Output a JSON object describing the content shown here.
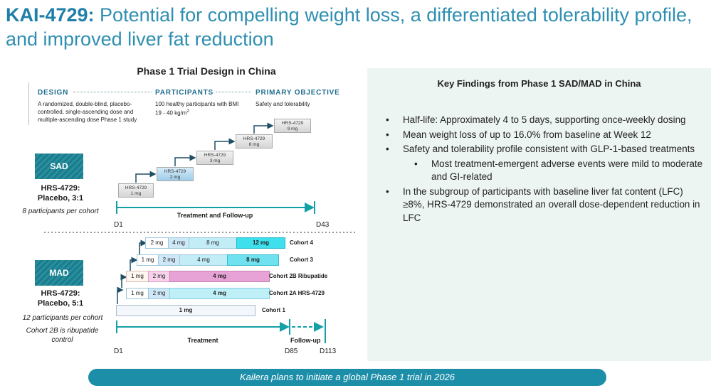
{
  "header": {
    "title_bold": "KAI-4729:",
    "title_rest": " Potential for compelling weight loss, a differentiated tolerability profile, and improved liver fat reduction"
  },
  "trial_design": {
    "title": "Phase 1 Trial Design in China",
    "columns": [
      {
        "heading": "DESIGN",
        "text": "A randomized, double-blind, placebo-controlled, single-ascending dose and multiple-ascending dose Phase 1 study"
      },
      {
        "heading": "PARTICIPANTS",
        "text_main": "100 healthy participants with BMI 19 - 40 kg/m",
        "text_sup": "2"
      },
      {
        "heading": "PRIMARY OBJECTIVE",
        "text": "Safety and tolerability"
      }
    ],
    "sad": {
      "badge": "SAD",
      "drug": "HRS-4729:",
      "ratio": "Placebo, 3:1",
      "note": "8 participants per cohort",
      "steps": [
        {
          "drug": "HRS-4729",
          "dose": "1 mg"
        },
        {
          "drug": "HRS-4729",
          "dose": "2 mg"
        },
        {
          "drug": "HRS-4729",
          "dose": "3 mg"
        },
        {
          "drug": "HRS-4729",
          "dose": "6 mg"
        },
        {
          "drug": "HRS-4729",
          "dose": "9 mg"
        }
      ],
      "timeline_label": "Treatment and Follow-up",
      "day_start": "D1",
      "day_end": "D43"
    },
    "mad": {
      "badge": "MAD",
      "drug": "HRS-4729:",
      "ratio": "Placebo, 5:1",
      "note1": "12 participants per cohort",
      "note2": "Cohort 2B is ribupatide control",
      "cohorts": [
        {
          "label": "Cohort 4",
          "segments": [
            "2 mg",
            "4 mg",
            "8 mg",
            "12 mg"
          ]
        },
        {
          "label": "Cohort 3",
          "segments": [
            "1 mg",
            "2 mg",
            "4 mg",
            "8 mg"
          ]
        },
        {
          "label": "Cohort 2B Ribupatide",
          "segments": [
            "1 mg",
            "2 mg",
            "4 mg"
          ]
        },
        {
          "label": "Cohort 2A HRS-4729",
          "segments": [
            "1 mg",
            "2 mg",
            "4 mg"
          ]
        },
        {
          "label": "Cohort 1",
          "segments": [
            "1 mg"
          ]
        }
      ],
      "treatment_label": "Treatment",
      "followup_label": "Follow-up",
      "day_start": "D1",
      "day_mid": "D85",
      "day_end": "D113"
    }
  },
  "findings": {
    "title": "Key Findings from Phase 1 SAD/MAD in China",
    "items": [
      "Half-life: Approximately 4 to 5 days, supporting once-weekly dosing",
      "Mean weight loss of up to 16.0% from baseline at Week 12",
      "Safety and tolerability profile consistent with GLP-1-based treatments",
      "Most treatment-emergent adverse events were mild to moderate and GI-related",
      "In the subgroup of participants with baseline liver fat content (LFC) ≥8%, HRS-4729 demonstrated an overall dose-dependent reduction in LFC"
    ]
  },
  "banner": "Kailera plans to initiate a global Phase 1 trial in 2026",
  "colors": {
    "title_blue": "#2f8fb1",
    "badge_teal": "#1a7c8c",
    "banner": "#1d8ea8",
    "panel_bg": "#edf5f3",
    "ribupatide_pink": "#e7a2d6",
    "cyan_12mg": "#3ee0ee"
  }
}
